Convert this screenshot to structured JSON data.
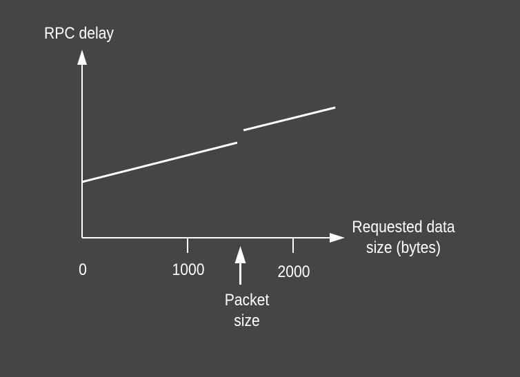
{
  "colors": {
    "background": "#454545",
    "foreground": "#ffffff"
  },
  "chart_data": {
    "type": "line",
    "title": "",
    "ylabel": "RPC delay",
    "xlabel_lines": [
      "Requested data",
      "size (bytes)"
    ],
    "xlim": [
      0,
      2500
    ],
    "ylim": [
      0,
      100
    ],
    "x_ticks": [
      0,
      1000,
      2000
    ],
    "x_tick_labels": [
      "0",
      "1000",
      "2000"
    ],
    "y_ticks": [],
    "grid": false,
    "legend": "none",
    "series": [
      {
        "x": [
          0,
          1470
        ],
        "y": [
          27,
          46
        ]
      },
      {
        "x": [
          1530,
          2400
        ],
        "y": [
          52,
          63
        ]
      }
    ],
    "annotations": [
      {
        "lines": [
          "Packet",
          "size"
        ],
        "x": 1500,
        "arrow": "up"
      }
    ]
  }
}
